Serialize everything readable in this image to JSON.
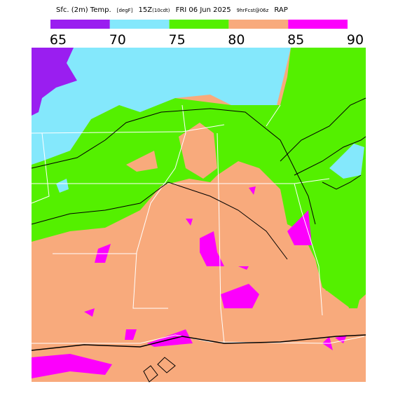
{
  "header": {
    "title": "Sfc. (2m) Temp.",
    "units": "[degF]",
    "time": "15Z",
    "local_time": "(10cdt)",
    "date": "FRI 06 Jun 2025",
    "forecast": "9hrFcst@06z",
    "model": "RAP"
  },
  "legend": {
    "ticks": [
      65,
      70,
      75,
      80,
      85,
      90
    ],
    "colors": [
      "#9a1ef0",
      "#84e8fc",
      "#54f000",
      "#f8aa7c",
      "#fc00fc"
    ]
  }
}
